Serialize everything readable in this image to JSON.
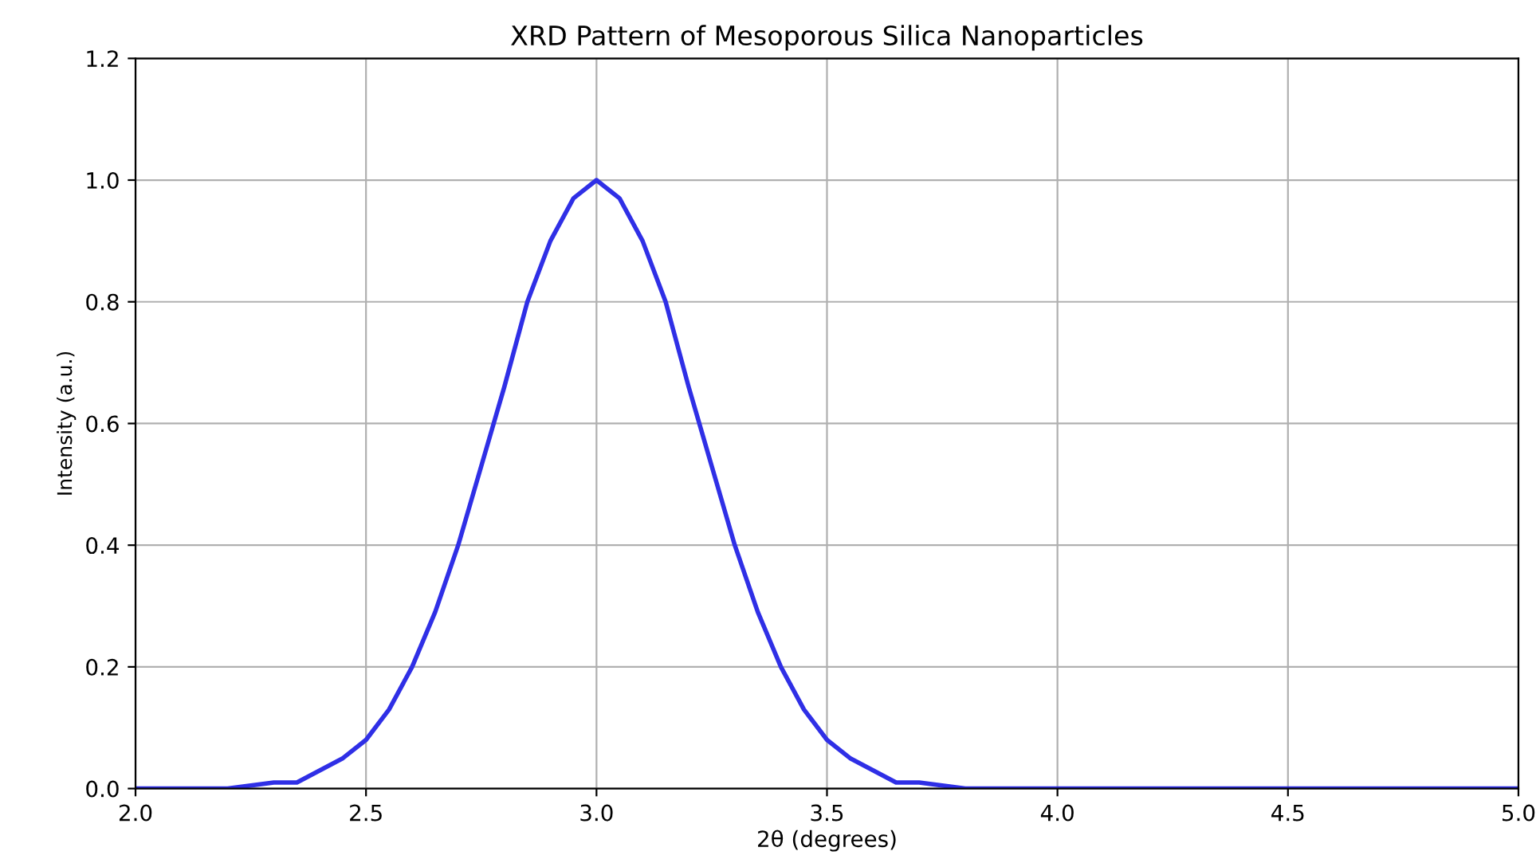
{
  "chart_data": {
    "type": "line",
    "title": "XRD Pattern of Mesoporous Silica Nanoparticles",
    "xlabel": "2θ (degrees)",
    "ylabel": "Intensity (a.u.)",
    "x": [
      2.0,
      2.1,
      2.2,
      2.3,
      2.35,
      2.4,
      2.45,
      2.5,
      2.55,
      2.6,
      2.65,
      2.7,
      2.75,
      2.8,
      2.85,
      2.9,
      2.95,
      3.0,
      3.05,
      3.1,
      3.15,
      3.2,
      3.25,
      3.3,
      3.35,
      3.4,
      3.45,
      3.5,
      3.55,
      3.6,
      3.65,
      3.7,
      3.8,
      3.9,
      4.0,
      4.5,
      5.0
    ],
    "series": [
      {
        "color": "#2f2fe6",
        "values": [
          0.0,
          0.0,
          0.0,
          0.01,
          0.01,
          0.03,
          0.05,
          0.08,
          0.13,
          0.2,
          0.29,
          0.4,
          0.53,
          0.66,
          0.8,
          0.9,
          0.97,
          1.0,
          0.97,
          0.9,
          0.8,
          0.66,
          0.53,
          0.4,
          0.29,
          0.2,
          0.13,
          0.08,
          0.05,
          0.03,
          0.01,
          0.01,
          0.0,
          0.0,
          0.0,
          0.0,
          0.0
        ]
      }
    ],
    "xlim": [
      2.0,
      5.0
    ],
    "ylim": [
      0.0,
      1.2
    ],
    "xticks": [
      {
        "value": 2.0,
        "label": "2.0"
      },
      2.5,
      {
        "value": 3.0,
        "label": "3.0"
      },
      3.5,
      {
        "value": 4.0,
        "label": "4.0"
      },
      4.5,
      {
        "value": 5.0,
        "label": "5.0"
      }
    ],
    "yticks": [
      {
        "value": 0.0,
        "label": "0.0"
      },
      0.2,
      0.4,
      0.6,
      0.8,
      {
        "value": 1.0,
        "label": "1.0"
      },
      1.2
    ],
    "grid": true,
    "line_style": "solid",
    "marker": "none"
  }
}
